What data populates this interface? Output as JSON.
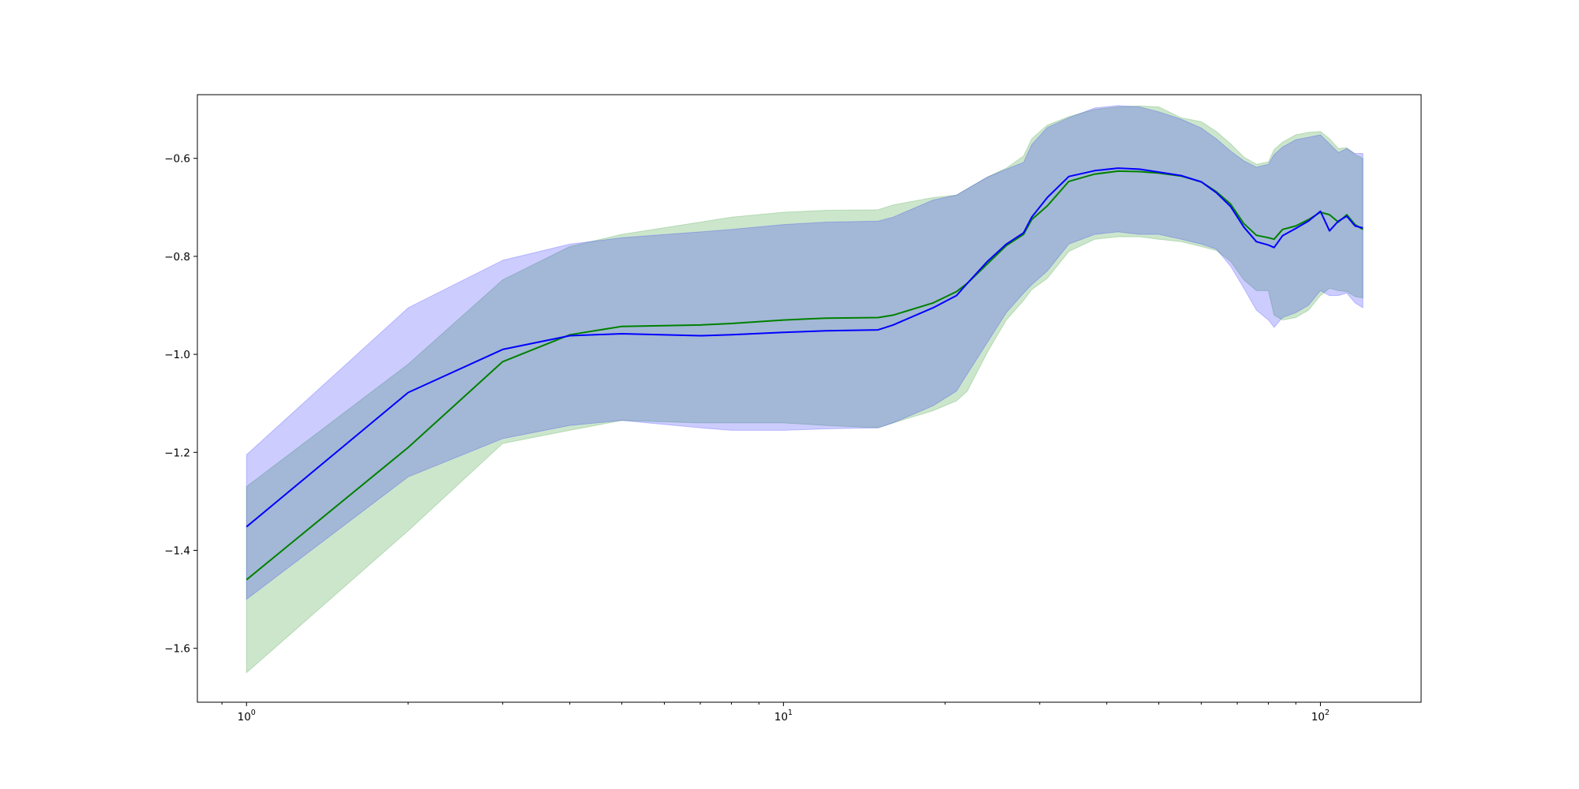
{
  "chart_data": {
    "type": "line",
    "title": "",
    "xlabel": "",
    "ylabel": "",
    "xscale": "log",
    "xlim": [
      0.81,
      154
    ],
    "ylim": [
      -1.71,
      -0.47
    ],
    "grid": false,
    "legend": "none",
    "x_tick_labels": [
      {
        "base": "10",
        "exp": "0",
        "value": 1
      },
      {
        "base": "10",
        "exp": "1",
        "value": 10
      },
      {
        "base": "10",
        "exp": "2",
        "value": 100
      }
    ],
    "y_tick_labels": [
      {
        "value": -0.6,
        "label": "−0.6"
      },
      {
        "value": -0.8,
        "label": "−0.8"
      },
      {
        "value": -1.0,
        "label": "−1.0"
      },
      {
        "value": -1.2,
        "label": "−1.2"
      },
      {
        "value": -1.4,
        "label": "−1.4"
      },
      {
        "value": -1.6,
        "label": "−1.6"
      }
    ],
    "x": [
      1,
      2,
      3,
      4,
      5,
      7,
      8,
      10,
      12,
      15,
      16,
      19,
      21,
      22,
      24,
      26,
      28,
      29,
      31,
      34,
      38,
      42,
      46,
      50,
      55,
      60,
      64,
      68,
      72,
      76,
      80,
      82,
      85,
      90,
      95,
      100,
      104,
      108,
      112,
      116,
      120
    ],
    "series": [
      {
        "color": "#008000",
        "band_color": "#008000",
        "band_opacity": 0.2,
        "mean": [
          -1.46,
          -1.19,
          -1.015,
          -0.96,
          -0.943,
          -0.94,
          -0.937,
          -0.93,
          -0.926,
          -0.925,
          -0.92,
          -0.895,
          -0.872,
          -0.855,
          -0.815,
          -0.778,
          -0.755,
          -0.725,
          -0.697,
          -0.647,
          -0.632,
          -0.626,
          -0.627,
          -0.63,
          -0.636,
          -0.648,
          -0.668,
          -0.693,
          -0.733,
          -0.757,
          -0.762,
          -0.765,
          -0.745,
          -0.738,
          -0.725,
          -0.71,
          -0.715,
          -0.73,
          -0.715,
          -0.735,
          -0.745
        ],
        "upper": [
          -1.27,
          -1.02,
          -0.848,
          -0.78,
          -0.755,
          -0.73,
          -0.72,
          -0.71,
          -0.706,
          -0.705,
          -0.695,
          -0.68,
          -0.675,
          -0.662,
          -0.638,
          -0.62,
          -0.595,
          -0.56,
          -0.532,
          -0.515,
          -0.5,
          -0.495,
          -0.493,
          -0.495,
          -0.517,
          -0.525,
          -0.545,
          -0.57,
          -0.597,
          -0.612,
          -0.607,
          -0.582,
          -0.567,
          -0.552,
          -0.547,
          -0.545,
          -0.56,
          -0.58,
          -0.578,
          -0.592,
          -0.6
        ],
        "lower": [
          -1.65,
          -1.36,
          -1.182,
          -1.155,
          -1.135,
          -1.14,
          -1.14,
          -1.14,
          -1.145,
          -1.15,
          -1.14,
          -1.115,
          -1.095,
          -1.075,
          -0.995,
          -0.93,
          -0.89,
          -0.868,
          -0.845,
          -0.79,
          -0.765,
          -0.76,
          -0.76,
          -0.765,
          -0.77,
          -0.78,
          -0.788,
          -0.81,
          -0.848,
          -0.87,
          -0.87,
          -0.92,
          -0.93,
          -0.925,
          -0.91,
          -0.88,
          -0.865,
          -0.87,
          -0.872,
          -0.882,
          -0.885
        ]
      },
      {
        "color": "#0000ff",
        "band_color": "#0000ff",
        "band_opacity": 0.2,
        "mean": [
          -1.352,
          -1.078,
          -0.99,
          -0.962,
          -0.958,
          -0.962,
          -0.96,
          -0.955,
          -0.952,
          -0.95,
          -0.94,
          -0.905,
          -0.88,
          -0.855,
          -0.81,
          -0.775,
          -0.752,
          -0.72,
          -0.68,
          -0.637,
          -0.625,
          -0.62,
          -0.622,
          -0.628,
          -0.635,
          -0.648,
          -0.67,
          -0.698,
          -0.74,
          -0.77,
          -0.777,
          -0.782,
          -0.758,
          -0.743,
          -0.728,
          -0.708,
          -0.748,
          -0.728,
          -0.718,
          -0.738,
          -0.742
        ],
        "upper": [
          -1.205,
          -0.905,
          -0.808,
          -0.775,
          -0.762,
          -0.75,
          -0.745,
          -0.735,
          -0.73,
          -0.728,
          -0.72,
          -0.685,
          -0.675,
          -0.662,
          -0.638,
          -0.622,
          -0.608,
          -0.572,
          -0.537,
          -0.517,
          -0.497,
          -0.492,
          -0.495,
          -0.505,
          -0.52,
          -0.538,
          -0.56,
          -0.585,
          -0.605,
          -0.618,
          -0.612,
          -0.592,
          -0.577,
          -0.562,
          -0.557,
          -0.552,
          -0.57,
          -0.588,
          -0.58,
          -0.59,
          -0.59
        ],
        "lower": [
          -1.5,
          -1.25,
          -1.172,
          -1.145,
          -1.135,
          -1.15,
          -1.155,
          -1.155,
          -1.152,
          -1.15,
          -1.14,
          -1.105,
          -1.075,
          -1.04,
          -0.975,
          -0.915,
          -0.875,
          -0.858,
          -0.83,
          -0.775,
          -0.755,
          -0.75,
          -0.755,
          -0.755,
          -0.765,
          -0.775,
          -0.785,
          -0.82,
          -0.865,
          -0.91,
          -0.93,
          -0.945,
          -0.925,
          -0.915,
          -0.9,
          -0.87,
          -0.88,
          -0.88,
          -0.875,
          -0.895,
          -0.905
        ]
      }
    ]
  }
}
